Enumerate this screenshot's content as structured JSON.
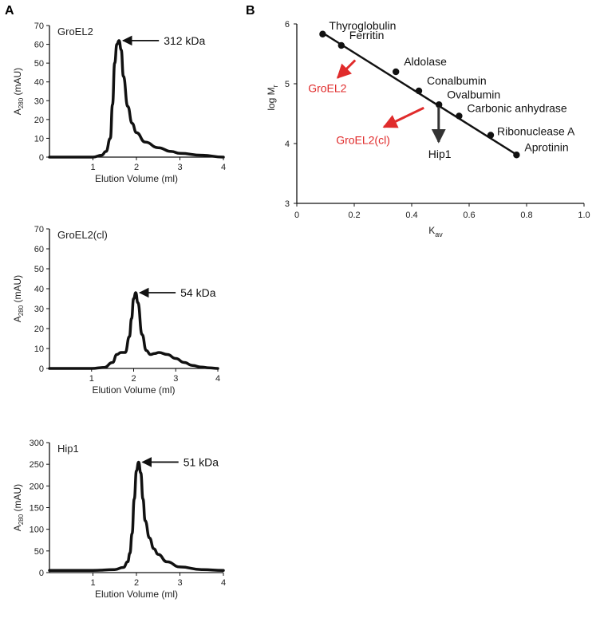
{
  "panels": {
    "a": "A",
    "b": "B"
  },
  "chart_data": [
    {
      "type": "line",
      "panel": "A",
      "title": "GroEL2",
      "xlabel": "Elution Volume (ml)",
      "ylabel_main": "A",
      "ylabel_sub": "280",
      "ylabel_tail": " (mAU)",
      "xlim": [
        0,
        4
      ],
      "ylim": [
        0,
        70
      ],
      "xticks": [
        1,
        2,
        3,
        4
      ],
      "yticks": [
        0,
        10,
        20,
        30,
        40,
        50,
        60,
        70
      ],
      "grid": false,
      "annotation": {
        "text": "312 kDa",
        "x": 1.6,
        "y": 62
      },
      "series": [
        {
          "x": [
            0,
            0.5,
            1.0,
            1.2,
            1.3,
            1.4,
            1.45,
            1.5,
            1.55,
            1.6,
            1.65,
            1.7,
            1.8,
            1.9,
            2.0,
            2.2,
            2.5,
            2.8,
            3.0,
            3.5,
            4.0
          ],
          "values": [
            0,
            0,
            0,
            1,
            3,
            10,
            28,
            50,
            60,
            62,
            57,
            43,
            27,
            18,
            13,
            8,
            5,
            3,
            2,
            1,
            0
          ]
        }
      ]
    },
    {
      "type": "line",
      "panel": "A",
      "title": "GroEL2(cl)",
      "xlabel": "Elution Volume (ml)",
      "ylabel_main": "A",
      "ylabel_sub": "280",
      "ylabel_tail": " (mAU)",
      "xlim": [
        0,
        4
      ],
      "ylim": [
        0,
        70
      ],
      "xticks": [
        1,
        2,
        3,
        4
      ],
      "yticks": [
        0,
        10,
        20,
        30,
        40,
        50,
        60,
        70
      ],
      "grid": false,
      "annotation": {
        "text": "54 kDa",
        "x": 2.05,
        "y": 38
      },
      "series": [
        {
          "x": [
            0,
            0.5,
            1.0,
            1.3,
            1.5,
            1.6,
            1.7,
            1.8,
            1.9,
            1.95,
            2.0,
            2.05,
            2.1,
            2.2,
            2.3,
            2.4,
            2.5,
            2.6,
            2.8,
            3.0,
            3.2,
            3.4,
            3.6,
            3.8,
            4.0
          ],
          "values": [
            0,
            0,
            0,
            0.5,
            3,
            7,
            8,
            8,
            16,
            25,
            35,
            38,
            33,
            17,
            9,
            7,
            7.5,
            8,
            7,
            5,
            3,
            1.5,
            0.7,
            0.3,
            0
          ]
        }
      ]
    },
    {
      "type": "line",
      "panel": "A",
      "title": "Hip1",
      "xlabel": "Elution Volume (ml)",
      "ylabel_main": "A",
      "ylabel_sub": "280",
      "ylabel_tail": " (mAU)",
      "xlim": [
        0,
        4
      ],
      "ylim": [
        0,
        300
      ],
      "xticks": [
        1,
        2,
        3,
        4
      ],
      "yticks": [
        0,
        50,
        100,
        150,
        200,
        250,
        300
      ],
      "grid": false,
      "annotation": {
        "text": "51 kDa",
        "x": 2.05,
        "y": 255
      },
      "series": [
        {
          "x": [
            0,
            0.5,
            1.0,
            1.5,
            1.7,
            1.8,
            1.85,
            1.9,
            1.95,
            2.0,
            2.05,
            2.1,
            2.15,
            2.2,
            2.3,
            2.4,
            2.5,
            2.7,
            3.0,
            3.5,
            4.0
          ],
          "values": [
            5,
            5,
            5,
            7,
            12,
            25,
            45,
            90,
            170,
            235,
            255,
            230,
            170,
            120,
            80,
            55,
            42,
            25,
            13,
            7,
            5
          ]
        }
      ]
    },
    {
      "type": "scatter",
      "panel": "B",
      "xlabel_main": "K",
      "xlabel_sub": "av",
      "ylabel_main": "log M",
      "ylabel_sub": "r",
      "xlim": [
        0,
        1.0
      ],
      "ylim": [
        3,
        6
      ],
      "xticks": [
        0,
        0.2,
        0.4,
        0.6,
        0.8,
        1.0
      ],
      "xtick_labels": [
        "0",
        "0.2",
        "0.4",
        "0.6",
        "0.8",
        "1.0"
      ],
      "yticks": [
        3,
        4,
        5,
        6
      ],
      "grid": false,
      "fit_line": {
        "x": [
          0.09,
          0.77
        ],
        "y": [
          5.85,
          3.8
        ]
      },
      "standards": [
        {
          "label": "Thyroglobulin",
          "x": 0.09,
          "y": 5.83
        },
        {
          "label": "Ferritin",
          "x": 0.155,
          "y": 5.64
        },
        {
          "label": "Aldolase",
          "x": 0.345,
          "y": 5.2
        },
        {
          "label": "Conalbumin",
          "x": 0.425,
          "y": 4.88
        },
        {
          "label": "Ovalbumin",
          "x": 0.495,
          "y": 4.65
        },
        {
          "label": "Carbonic anhydrase",
          "x": 0.565,
          "y": 4.46
        },
        {
          "label": "Ribonuclease A",
          "x": 0.675,
          "y": 4.14
        },
        {
          "label": "Aprotinin",
          "x": 0.765,
          "y": 3.81
        }
      ],
      "samples": [
        {
          "label": "GroEL2",
          "x": 0.22,
          "y": 5.5,
          "color": "#e02b2b"
        },
        {
          "label": "GroEL2(cl)",
          "x": 0.47,
          "y": 4.73,
          "color": "#e02b2b"
        },
        {
          "label": "Hip1",
          "x": 0.48,
          "y": 4.72,
          "color": "#333333"
        }
      ]
    }
  ]
}
